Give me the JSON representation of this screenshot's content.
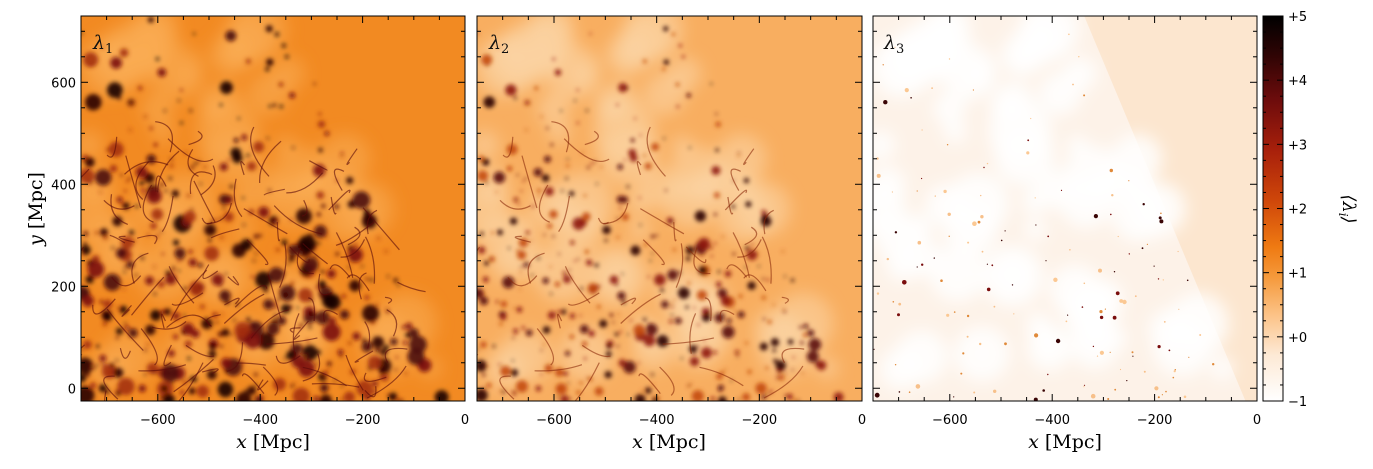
{
  "chart_data": {
    "type": "heatmap",
    "panels": [
      {
        "panel_label": "λ1",
        "xlim": [
          -750,
          0
        ],
        "ylim": [
          -25,
          730
        ],
        "xticks": [
          -600,
          -400,
          -200,
          0
        ],
        "yticks": [
          0,
          200,
          400,
          600
        ],
        "x_tick_labels": [
          "−600",
          "−400",
          "−200",
          "0"
        ],
        "y_tick_labels": [
          "0",
          "200",
          "400",
          "600"
        ],
        "xlabel": "x [Mpc]",
        "ylabel": "y [Mpc]",
        "background_value": 1.0
      },
      {
        "panel_label": "λ2",
        "xlim": [
          -750,
          0
        ],
        "ylim": [
          -25,
          730
        ],
        "xticks": [
          -600,
          -400,
          -200,
          0
        ],
        "yticks": [
          0,
          200,
          400,
          600
        ],
        "x_tick_labels": [
          "−600",
          "−400",
          "−200",
          "0"
        ],
        "xlabel": "x [Mpc]",
        "background_value": 0.5
      },
      {
        "panel_label": "λ3",
        "xlim": [
          -750,
          0
        ],
        "ylim": [
          -25,
          730
        ],
        "xticks": [
          -600,
          -400,
          -200,
          0
        ],
        "yticks": [
          0,
          200,
          400,
          600
        ],
        "x_tick_labels": [
          "−600",
          "−400",
          "−200",
          "0"
        ],
        "xlabel": "x [Mpc]",
        "background_value": -0.9
      }
    ],
    "colorbar": {
      "label": "⟨λi⟩",
      "range": [
        -1,
        5
      ],
      "ticks": [
        -1,
        0,
        1,
        2,
        3,
        4,
        5
      ],
      "tick_labels": [
        "−1",
        "+0",
        "+1",
        "+2",
        "+3",
        "+4",
        "+5"
      ],
      "colormap": "afmhot_r",
      "colors": [
        "#ffffff",
        "#fde7cf",
        "#fbb56b",
        "#f07e0e",
        "#d8520a",
        "#b3230b",
        "#7a0d0d",
        "#3a0505",
        "#000000"
      ]
    }
  }
}
